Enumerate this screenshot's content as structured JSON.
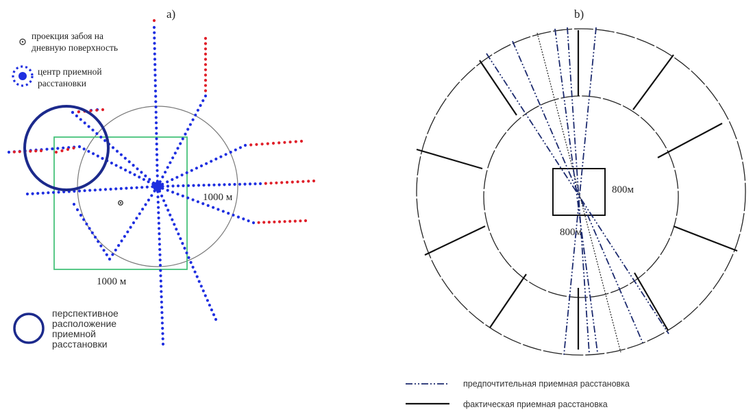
{
  "panel_a": {
    "label": "a)",
    "legend": {
      "face_projection_line1": "проекция забоя на",
      "face_projection_line2": "дневную поверхность",
      "center_line1": "центр приемной",
      "center_line2": "расстановки",
      "perspective_line1": "перспективное",
      "perspective_line2": "расположение",
      "perspective_line3": "приемной",
      "perspective_line4": "расстановки"
    },
    "circle_label": "1000 м",
    "square_label": "1000 м",
    "colors": {
      "blue_dots": "#1f2fe0",
      "red_dots": "#e0202a",
      "square": "#46c27a",
      "navy": "#1c2a8c"
    }
  },
  "panel_b": {
    "label": "b)",
    "square_side_label": "800м",
    "square_bottom_label": "800м",
    "legend": {
      "preferred": "предпочтительная приемная расстановка",
      "actual": "фактическая приемная расстановка"
    },
    "colors": {
      "preferred_line": "#1c2a6e",
      "actual_line": "#111111"
    }
  }
}
